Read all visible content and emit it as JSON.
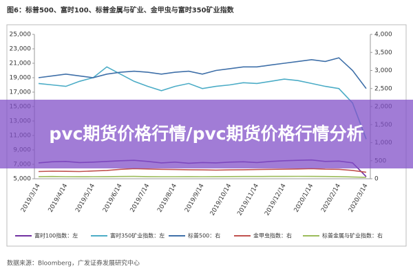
{
  "chart_data": {
    "type": "line",
    "title": "图6：标普500、富时100、标普金属与矿业、金甲虫与富时350矿业指数",
    "categories": [
      "2019/3/14",
      null,
      "2019/4/14",
      null,
      "2019/5/14",
      null,
      "2019/6/14",
      null,
      "2019/7/14",
      null,
      "2019/8/14",
      null,
      "2019/9/14",
      null,
      "2019/10/14",
      null,
      "2019/11/14",
      null,
      "2019/12/14",
      null,
      "2020/1/14",
      null,
      "2020/2/14",
      null,
      "2020/3/14"
    ],
    "ylim": [
      5000,
      25000
    ],
    "yticks": [
      {
        "value": 5000,
        "label": "5,000"
      },
      {
        "value": 7000,
        "label": "7,000"
      },
      {
        "value": 9000,
        "label": "9,000"
      },
      {
        "value": 11000,
        "label": "11,000"
      },
      {
        "value": 13000,
        "label": "13,000"
      },
      {
        "value": 15000,
        "label": "15,000"
      },
      {
        "value": 17000,
        "label": "17,000"
      },
      {
        "value": 19000,
        "label": "19,000"
      },
      {
        "value": 21000,
        "label": "21,000"
      },
      {
        "value": 23000,
        "label": "23,000"
      },
      {
        "value": 25000,
        "label": "25,000"
      }
    ],
    "y2lim": [
      0,
      4000
    ],
    "y2ticks": [
      0,
      500,
      {
        "value": 1000,
        "label": "1,000"
      },
      {
        "value": 1500,
        "label": "1,500"
      },
      {
        "value": 2000,
        "label": "2,000"
      },
      {
        "value": 2500,
        "label": "2,500"
      },
      {
        "value": 3000,
        "label": "3,000"
      },
      {
        "value": 3500,
        "label": "3,500"
      },
      {
        "value": 4000,
        "label": "4,000"
      }
    ],
    "series": [
      {
        "name": "富时100指数：左",
        "color": "#7030a0",
        "values": [
          7200,
          7350,
          7400,
          7250,
          7300,
          7400,
          7500,
          7550,
          7400,
          7200,
          7300,
          7150,
          7250,
          7200,
          7300,
          7350,
          7250,
          7400,
          7500,
          7550,
          7600,
          7400,
          7450,
          7200,
          5300
        ]
      },
      {
        "name": "富时350矿业指数：左",
        "color": "#4bacc6",
        "values": [
          18200,
          18000,
          17800,
          18500,
          19000,
          20500,
          19500,
          18500,
          17800,
          17200,
          17800,
          18200,
          17500,
          17800,
          18000,
          18300,
          18200,
          18500,
          18800,
          18600,
          18200,
          17800,
          17500,
          15500,
          10500
        ]
      },
      {
        "name": "标普500：右",
        "color": "#3e6fa8",
        "axis": "y2",
        "values": [
          2800,
          2850,
          2900,
          2850,
          2800,
          2900,
          2950,
          2980,
          2950,
          2900,
          2950,
          2980,
          2900,
          3000,
          3050,
          3100,
          3100,
          3150,
          3200,
          3250,
          3300,
          3250,
          3350,
          3000,
          2500
        ]
      },
      {
        "name": "金甲虫指数：右",
        "color": "#c0504d",
        "axis": "y2",
        "values": [
          200,
          210,
          205,
          200,
          215,
          230,
          260,
          280,
          270,
          260,
          255,
          250,
          245,
          240,
          245,
          250,
          255,
          260,
          265,
          270,
          280,
          265,
          260,
          230,
          180
        ]
      },
      {
        "name": "标普金属与矿业指数：右",
        "color": "#9bbb59",
        "axis": "y2",
        "values": [
          60,
          62,
          58,
          55,
          57,
          60,
          62,
          64,
          60,
          58,
          57,
          59,
          58,
          60,
          61,
          62,
          63,
          64,
          65,
          66,
          64,
          62,
          60,
          50,
          40
        ]
      }
    ],
    "source": "数据来源：Bloomberg，广发证券发展研究中心",
    "overlay": "pvc期货价格行情/pvc期货价格行情分析"
  }
}
